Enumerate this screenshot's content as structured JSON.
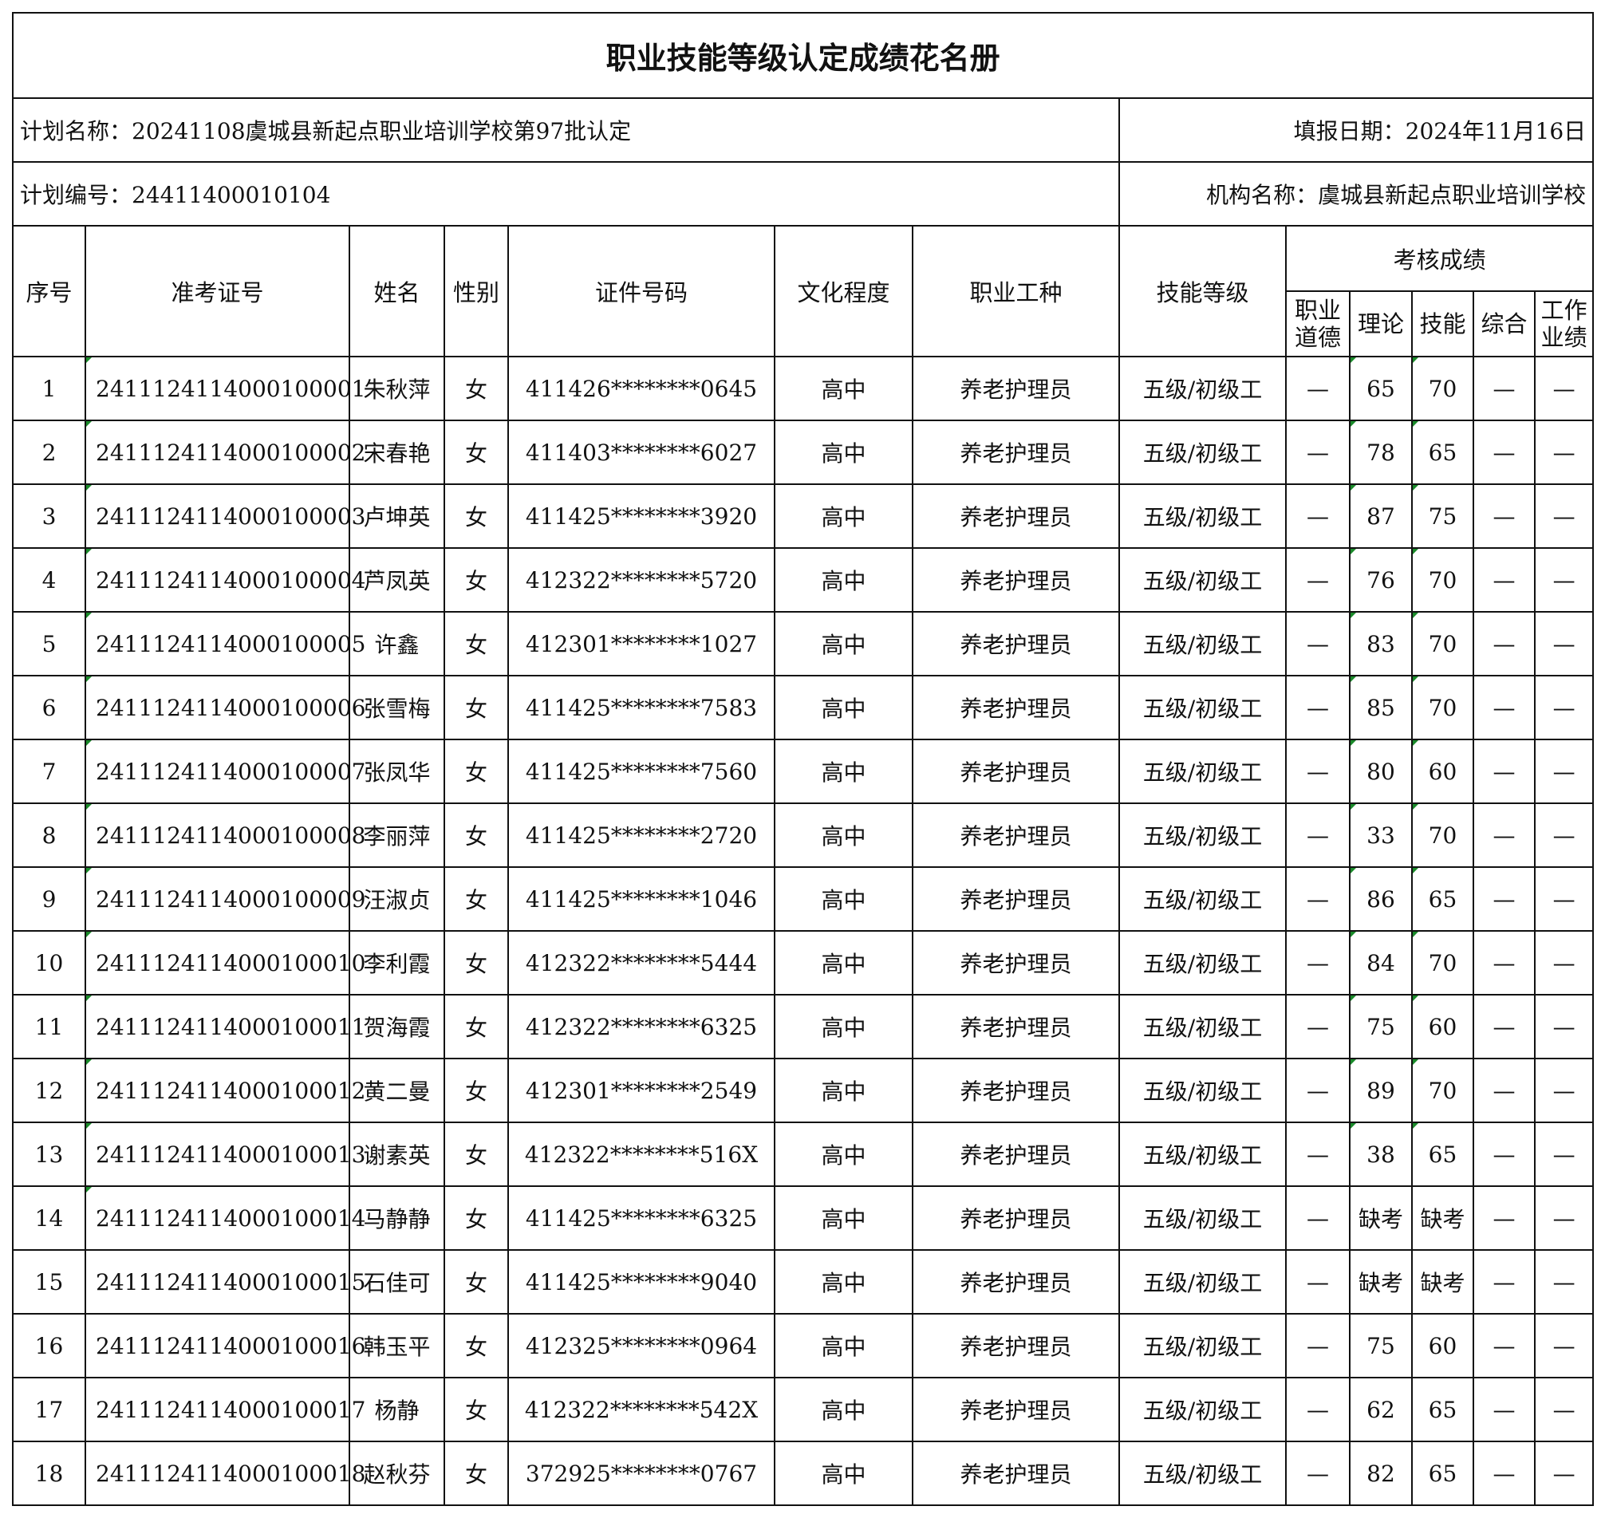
{
  "title": "职业技能等级认定成绩花名册",
  "plan_name": "计划名称：20241108虞城县新起点职业培训学校第97批认定",
  "fill_date": "填报日期：2024年11月16日",
  "plan_no": "计划编号：24411400010104",
  "org_name": "机构名称：虞城县新起点职业培训学校",
  "headers": {
    "seq": "序号",
    "exam_no": "准考证号",
    "name": "姓名",
    "gender": "性别",
    "id_no": "证件号码",
    "education": "文化程度",
    "occupation": "职业工种",
    "level": "技能等级",
    "scores": "考核成绩",
    "ethics": "职业\n道德",
    "theory": "理论",
    "skill": "技能",
    "overall": "综合",
    "work": "工作\n业绩"
  },
  "rows": [
    [
      "1",
      "2411124114000100001",
      "朱秋萍",
      "女",
      "411426********0645",
      "高中",
      "养老护理员",
      "五级/初级工",
      "—",
      "65",
      "70",
      "—",
      "—"
    ],
    [
      "2",
      "2411124114000100002",
      "宋春艳",
      "女",
      "411403********6027",
      "高中",
      "养老护理员",
      "五级/初级工",
      "—",
      "78",
      "65",
      "—",
      "—"
    ],
    [
      "3",
      "2411124114000100003",
      "卢坤英",
      "女",
      "411425********3920",
      "高中",
      "养老护理员",
      "五级/初级工",
      "—",
      "87",
      "75",
      "—",
      "—"
    ],
    [
      "4",
      "2411124114000100004",
      "芦凤英",
      "女",
      "412322********5720",
      "高中",
      "养老护理员",
      "五级/初级工",
      "—",
      "76",
      "70",
      "—",
      "—"
    ],
    [
      "5",
      "2411124114000100005",
      "许鑫",
      "女",
      "412301********1027",
      "高中",
      "养老护理员",
      "五级/初级工",
      "—",
      "83",
      "70",
      "—",
      "—"
    ],
    [
      "6",
      "2411124114000100006",
      "张雪梅",
      "女",
      "411425********7583",
      "高中",
      "养老护理员",
      "五级/初级工",
      "—",
      "85",
      "70",
      "—",
      "—"
    ],
    [
      "7",
      "2411124114000100007",
      "张凤华",
      "女",
      "411425********7560",
      "高中",
      "养老护理员",
      "五级/初级工",
      "—",
      "80",
      "60",
      "—",
      "—"
    ],
    [
      "8",
      "2411124114000100008",
      "李丽萍",
      "女",
      "411425********2720",
      "高中",
      "养老护理员",
      "五级/初级工",
      "—",
      "33",
      "70",
      "—",
      "—"
    ],
    [
      "9",
      "2411124114000100009",
      "汪淑贞",
      "女",
      "411425********1046",
      "高中",
      "养老护理员",
      "五级/初级工",
      "—",
      "86",
      "65",
      "—",
      "—"
    ],
    [
      "10",
      "2411124114000100010",
      "李利霞",
      "女",
      "412322********5444",
      "高中",
      "养老护理员",
      "五级/初级工",
      "—",
      "84",
      "70",
      "—",
      "—"
    ],
    [
      "11",
      "2411124114000100011",
      "贺海霞",
      "女",
      "412322********6325",
      "高中",
      "养老护理员",
      "五级/初级工",
      "—",
      "75",
      "60",
      "—",
      "—"
    ],
    [
      "12",
      "2411124114000100012",
      "黄二曼",
      "女",
      "412301********2549",
      "高中",
      "养老护理员",
      "五级/初级工",
      "—",
      "89",
      "70",
      "—",
      "—"
    ],
    [
      "13",
      "2411124114000100013",
      "谢素英",
      "女",
      "412322********516X",
      "高中",
      "养老护理员",
      "五级/初级工",
      "—",
      "38",
      "65",
      "—",
      "—"
    ],
    [
      "14",
      "2411124114000100014",
      "马静静",
      "女",
      "411425********6325",
      "高中",
      "养老护理员",
      "五级/初级工",
      "—",
      "缺考",
      "缺考",
      "—",
      "—"
    ],
    [
      "15",
      "2411124114000100015",
      "石佳可",
      "女",
      "411425********9040",
      "高中",
      "养老护理员",
      "五级/初级工",
      "—",
      "缺考",
      "缺考",
      "—",
      "—"
    ],
    [
      "16",
      "2411124114000100016",
      "韩玉平",
      "女",
      "412325********0964",
      "高中",
      "养老护理员",
      "五级/初级工",
      "—",
      "75",
      "60",
      "—",
      "—"
    ],
    [
      "17",
      "2411124114000100017",
      "杨静",
      "女",
      "412322********542X",
      "高中",
      "养老护理员",
      "五级/初级工",
      "—",
      "62",
      "65",
      "—",
      "—"
    ],
    [
      "18",
      "2411124114000100018",
      "赵秋芬",
      "女",
      "372925********0767",
      "高中",
      "养老护理员",
      "五级/初级工",
      "—",
      "82",
      "65",
      "—",
      "—"
    ]
  ],
  "marked_rows": 14,
  "mark_color": "#1a8a2a"
}
